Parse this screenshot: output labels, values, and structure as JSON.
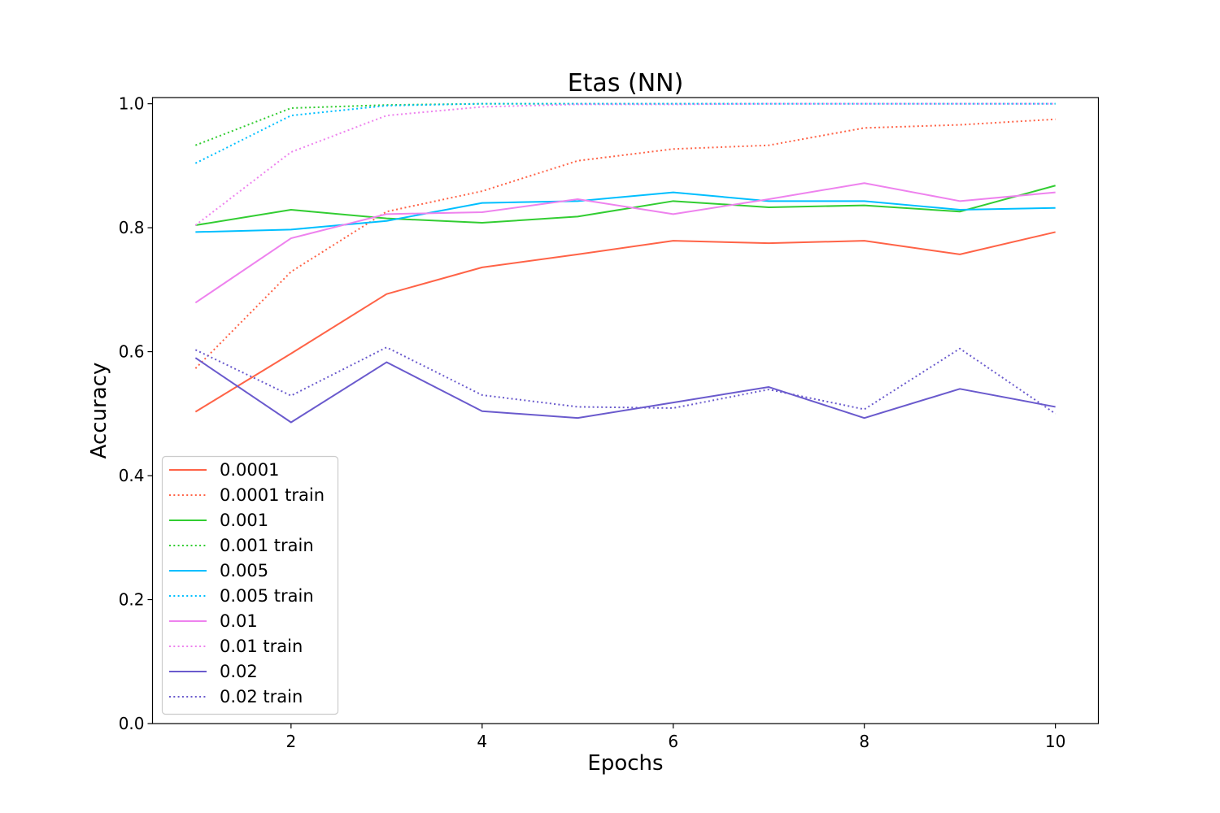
{
  "chart_data": {
    "type": "line",
    "title": "Etas (NN)",
    "xlabel": "Epochs",
    "ylabel": "Accuracy",
    "xlim": [
      0.55,
      10.45
    ],
    "ylim": [
      0.0,
      1.01
    ],
    "xticks": [
      2,
      4,
      6,
      8,
      10
    ],
    "xtick_labels": [
      "2",
      "4",
      "6",
      "8",
      "10"
    ],
    "yticks": [
      0.0,
      0.2,
      0.4,
      0.6,
      0.8,
      1.0
    ],
    "ytick_labels": [
      "0.0",
      "0.2",
      "0.4",
      "0.6",
      "0.8",
      "1.0"
    ],
    "grid": false,
    "legend_position": "lower-left",
    "x": [
      1,
      2,
      3,
      4,
      5,
      6,
      7,
      8,
      9,
      10
    ],
    "series": [
      {
        "name": "0.0001",
        "color": "#FF6347",
        "style": "solid",
        "values": [
          0.503,
          0.597,
          0.693,
          0.736,
          0.757,
          0.779,
          0.775,
          0.779,
          0.757,
          0.793
        ]
      },
      {
        "name": "0.0001 train",
        "color": "#FF6347",
        "style": "dotted",
        "values": [
          0.573,
          0.729,
          0.826,
          0.859,
          0.908,
          0.927,
          0.933,
          0.961,
          0.966,
          0.975
        ]
      },
      {
        "name": "0.001",
        "color": "#32CD32",
        "style": "solid",
        "values": [
          0.804,
          0.829,
          0.815,
          0.808,
          0.818,
          0.843,
          0.833,
          0.836,
          0.826,
          0.868
        ]
      },
      {
        "name": "0.001 train",
        "color": "#32CD32",
        "style": "dotted",
        "values": [
          0.933,
          0.993,
          0.998,
          1.0,
          1.0,
          1.0,
          1.0,
          1.0,
          1.0,
          1.0
        ]
      },
      {
        "name": "0.005",
        "color": "#00BFFF",
        "style": "solid",
        "values": [
          0.793,
          0.797,
          0.811,
          0.84,
          0.843,
          0.857,
          0.843,
          0.843,
          0.829,
          0.832
        ]
      },
      {
        "name": "0.005 train",
        "color": "#00BFFF",
        "style": "dotted",
        "values": [
          0.904,
          0.981,
          0.997,
          1.0,
          1.0,
          1.0,
          1.0,
          1.0,
          1.0,
          1.0
        ]
      },
      {
        "name": "0.01",
        "color": "#EE82EE",
        "style": "solid",
        "values": [
          0.679,
          0.783,
          0.822,
          0.825,
          0.846,
          0.822,
          0.846,
          0.872,
          0.843,
          0.857
        ]
      },
      {
        "name": "0.01 train",
        "color": "#EE82EE",
        "style": "dotted",
        "values": [
          0.804,
          0.922,
          0.981,
          0.995,
          0.999,
          0.999,
          1.0,
          1.0,
          1.0,
          1.0
        ]
      },
      {
        "name": "0.02",
        "color": "#6A5ACD",
        "style": "solid",
        "values": [
          0.59,
          0.486,
          0.583,
          0.504,
          0.493,
          0.518,
          0.543,
          0.493,
          0.54,
          0.511
        ]
      },
      {
        "name": "0.02 train",
        "color": "#6A5ACD",
        "style": "dotted",
        "values": [
          0.603,
          0.529,
          0.607,
          0.53,
          0.511,
          0.509,
          0.539,
          0.507,
          0.605,
          0.5
        ]
      }
    ]
  }
}
